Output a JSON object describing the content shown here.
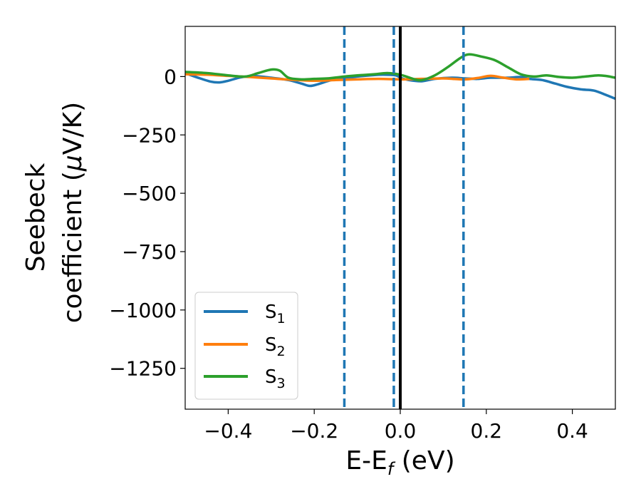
{
  "chart_data": {
    "type": "line",
    "xlabel": "E-E",
    "xlabel_sub": "f",
    "xlabel_unit": " (eV)",
    "ylabel_line1": "Seebeck",
    "ylabel_line2_prefix": "coefficient  (",
    "ylabel_mu": "μ",
    "ylabel_line2_suffix": "V/K)",
    "xlim": [
      -0.5,
      0.5
    ],
    "ylim": [
      -1425,
      215
    ],
    "x_ticks": [
      -0.4,
      -0.2,
      0.0,
      0.2,
      0.4
    ],
    "x_tick_labels": [
      "−0.4",
      "−0.2",
      "0.0",
      "0.2",
      "0.4"
    ],
    "y_ticks": [
      0,
      -250,
      -500,
      -750,
      -1000,
      -1250
    ],
    "y_tick_labels": [
      "0",
      "−250",
      "−500",
      "−750",
      "−1000",
      "−1250"
    ],
    "grid": false,
    "legend_position": "lower-left",
    "vertical_lines": [
      {
        "x": 0.0,
        "style": "solid",
        "color": "#000000"
      },
      {
        "x": -0.13,
        "style": "dashed",
        "color": "#1f77b4"
      },
      {
        "x": -0.015,
        "style": "dashed",
        "color": "#1f77b4"
      },
      {
        "x": 0.147,
        "style": "dashed",
        "color": "#1f77b4"
      }
    ],
    "series": [
      {
        "name": "S",
        "sub": "1",
        "color": "#1f77b4",
        "x": [
          -0.5,
          -0.47,
          -0.44,
          -0.42,
          -0.4,
          -0.37,
          -0.34,
          -0.3,
          -0.26,
          -0.23,
          -0.21,
          -0.19,
          -0.16,
          -0.13,
          -0.1,
          -0.07,
          -0.04,
          -0.01,
          0.0,
          0.02,
          0.05,
          0.08,
          0.12,
          0.15,
          0.18,
          0.21,
          0.25,
          0.28,
          0.3,
          0.33,
          0.36,
          0.39,
          0.42,
          0.45,
          0.48,
          0.5
        ],
        "y": [
          15,
          -5,
          -22,
          -25,
          -18,
          -3,
          2,
          -5,
          -15,
          -30,
          -40,
          -32,
          -15,
          -8,
          0,
          5,
          8,
          5,
          -5,
          -15,
          -20,
          -10,
          -5,
          -8,
          -10,
          -5,
          -5,
          -2,
          -10,
          -15,
          -30,
          -45,
          -55,
          -60,
          -80,
          -95
        ]
      },
      {
        "name": "S",
        "sub": "2",
        "color": "#ff7f0e",
        "x": [
          -0.5,
          -0.45,
          -0.4,
          -0.35,
          -0.3,
          -0.25,
          -0.2,
          -0.15,
          -0.1,
          -0.05,
          0.0,
          0.05,
          0.1,
          0.15,
          0.18,
          0.21,
          0.24,
          0.27,
          0.3
        ],
        "y": [
          10,
          8,
          3,
          -2,
          -8,
          -14,
          -18,
          -15,
          -12,
          -10,
          -12,
          -10,
          -8,
          -12,
          -6,
          3,
          -5,
          -12,
          -10
        ]
      },
      {
        "name": "S",
        "sub": "3",
        "color": "#2ca02c",
        "x": [
          -0.5,
          -0.45,
          -0.4,
          -0.36,
          -0.33,
          -0.3,
          -0.28,
          -0.26,
          -0.23,
          -0.2,
          -0.17,
          -0.13,
          -0.1,
          -0.06,
          -0.03,
          0.0,
          0.03,
          0.05,
          0.08,
          0.11,
          0.14,
          0.16,
          0.19,
          0.22,
          0.25,
          0.28,
          0.31,
          0.34,
          0.37,
          0.4,
          0.43,
          0.46,
          0.48,
          0.5
        ],
        "y": [
          20,
          15,
          5,
          0,
          15,
          30,
          25,
          -5,
          -12,
          -10,
          -8,
          0,
          5,
          10,
          15,
          8,
          -10,
          -15,
          5,
          40,
          80,
          95,
          85,
          70,
          40,
          10,
          0,
          5,
          -2,
          -5,
          0,
          5,
          2,
          -5
        ]
      }
    ]
  }
}
